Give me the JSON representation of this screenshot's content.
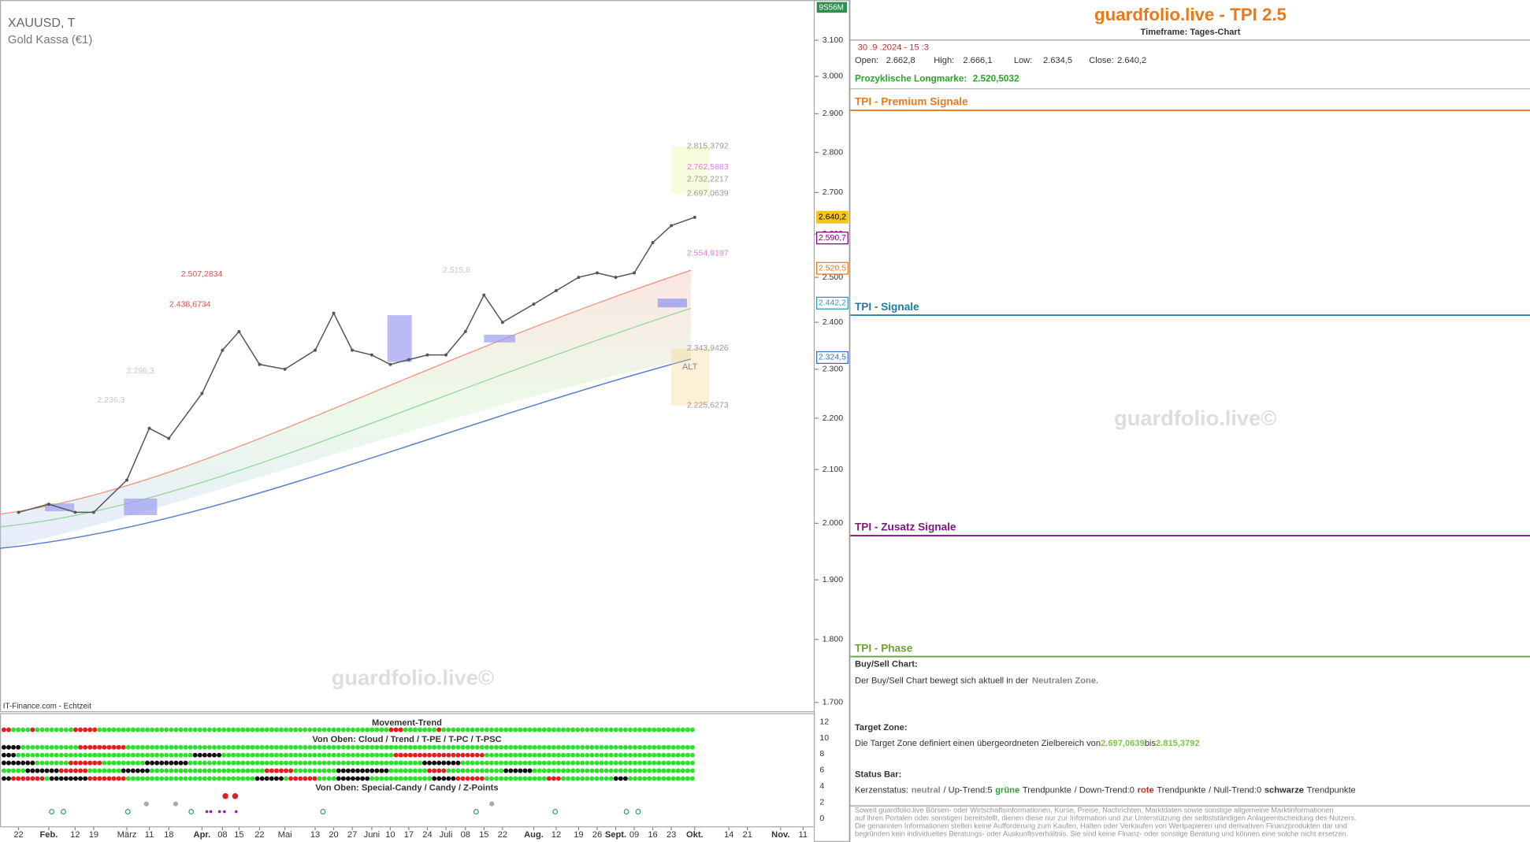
{
  "chart_data": {
    "type": "line",
    "title": "XAUUSD, T",
    "subtitle": "Gold Kassa (€1)",
    "source": "IT-Finance.com - Echtzeit",
    "watermark": "guardfolio.live©",
    "axis_badge": "9S56M",
    "log_scale": true,
    "grid": false,
    "color": "#555555",
    "categories": [
      "22",
      "Feb.",
      "12",
      "19",
      "März",
      "11",
      "18",
      "Apr.",
      "08",
      "15",
      "22",
      "Mai",
      "13",
      "20",
      "27",
      "Juni",
      "10",
      "17",
      "24",
      "Juli",
      "08",
      "15",
      "22",
      "Aug.",
      "12",
      "19",
      "26",
      "Sept.",
      "09",
      "16",
      "23",
      "Okt.",
      "14",
      "21",
      "Nov.",
      "11"
    ],
    "values": [
      2020,
      2035,
      2020,
      2020,
      2080,
      2180,
      2160,
      2250,
      2340,
      2380,
      2310,
      2300,
      2340,
      2420,
      2340,
      2330,
      2310,
      2320,
      2330,
      2330,
      2380,
      2460,
      2400,
      2440,
      2470,
      2500,
      2510,
      2500,
      2510,
      2580,
      2620,
      2640,
      null,
      null,
      null,
      null
    ],
    "ylim": [
      1685,
      3215
    ],
    "yticks": [
      {
        "value": 1700,
        "label": "1.700"
      },
      {
        "value": 1800,
        "label": "1.800"
      },
      {
        "value": 1900,
        "label": "1.900"
      },
      {
        "value": 2000,
        "label": "2.000"
      },
      {
        "value": 2100,
        "label": "2.100"
      },
      {
        "value": 2200,
        "label": "2.200"
      },
      {
        "value": 2300,
        "label": "2.300"
      },
      {
        "value": 2400,
        "label": "2.400"
      },
      {
        "value": 2500,
        "label": "2.500"
      },
      {
        "value": 2600,
        "label": "2.600"
      },
      {
        "value": 2700,
        "label": "2.700"
      },
      {
        "value": 2800,
        "label": "2.800"
      },
      {
        "value": 2900,
        "label": "2.900"
      },
      {
        "value": 3000,
        "label": "3.000"
      },
      {
        "value": 3100,
        "label": "3.100"
      }
    ],
    "annotations": [
      {
        "value": 2815.3792,
        "label": "2.815,3792",
        "color": "#999999"
      },
      {
        "value": 2762.5883,
        "label": "2.762,5883",
        "color": "#e879e8"
      },
      {
        "value": 2732.2217,
        "label": "2.732,2217",
        "color": "#999999"
      },
      {
        "value": 2697.0639,
        "label": "2.697,0639",
        "color": "#999999"
      },
      {
        "value": 2554.9197,
        "label": "2.554,9197",
        "color": "#e879e8"
      },
      {
        "value": 2507.2834,
        "label": "2.507,2834",
        "color": "#e05050"
      },
      {
        "value": 2438.6734,
        "label": "2.438,6734",
        "color": "#e05050"
      },
      {
        "value": 2515.8,
        "label": "2.515,8",
        "color": "#c8c8c8"
      },
      {
        "value": 2296.3,
        "label": "2.296,3",
        "color": "#c8c8c8"
      },
      {
        "value": 2236.3,
        "label": "2.236,3",
        "color": "#c8c8c8"
      },
      {
        "value": 2343.9426,
        "label": "2.343,9426",
        "color": "#999999"
      },
      {
        "value": 2225.6273,
        "label": "2.225,6273",
        "color": "#999999"
      }
    ],
    "zone_label": "ALT",
    "price_tags": [
      {
        "value": 2640.2,
        "label": "2.640,2",
        "color": "#f5c518"
      },
      {
        "value": 2590.7,
        "label": "2.590,7",
        "color": "#800080"
      },
      {
        "value": 2520.5,
        "label": "2.520,5",
        "color": "#e87a1e"
      },
      {
        "value": 2442.2,
        "label": "2.442,2",
        "color": "#2a9aa8"
      },
      {
        "value": 2324.5,
        "label": "2.324,5",
        "color": "#3a6fc4"
      }
    ]
  },
  "indicator_panel": {
    "title": "Movement-Trend",
    "subtitle1": "Von Oben: Cloud / Trend / T-PE / T-PC / T-PSC",
    "subtitle2": "Von Oben: Special-Candy / Candy / Z-Points",
    "ylim": [
      0,
      12
    ],
    "yticks": [
      0,
      2,
      4,
      6,
      8,
      10,
      12
    ]
  },
  "tpi": {
    "title": "guardfolio.live - TPI 2.5",
    "timeframe": "Timeframe: Tages-Chart",
    "date": "30 .9 .2024 - 15 :3",
    "ohlc": [
      [
        "Open:",
        "2.662,8"
      ],
      [
        "High:",
        "2.666,1"
      ],
      [
        "Low:",
        "2.634,5"
      ],
      [
        "Close:",
        "2.640,2"
      ]
    ],
    "longmarke_label": "Prozyklische Longmarke:",
    "longmarke_value": "2.520,5032",
    "sections": [
      "TPI - Premium Signale",
      "TPI - Signale",
      "TPI - Zusatz Signale",
      "TPI - Phase"
    ],
    "watermark": "guardfolio.live©",
    "buysell_title": "Buy/Sell Chart:",
    "buysell_text": "Der Buy/Sell Chart bewegt sich aktuell in der",
    "buysell_zone": "Neutralen Zone.",
    "target_title": "Target Zone:",
    "target_text": "Die Target Zone definiert einen übergeordneten Zielbereich von",
    "target_from": "2.697,0639",
    "target_bis": "bis",
    "target_to": "2.815,3792",
    "status_title": "Status Bar:",
    "status": [
      "Kerzenstatus:",
      "neutral",
      "/ Up-Trend:5",
      "grüne",
      "Trendpunkte",
      "/ Down-Trend:0",
      "rote",
      "Trendpunkte",
      "/ Null-Trend:0",
      "schwarze",
      "Trendpunkte"
    ],
    "disclaimer": [
      "Soweit guardfolio.live Börsen- oder Wirtschaftsinformationen, Kurse, Preise, Nachrichten, Marktdaten sowie sonstige allgemeine Marktinformationen",
      "auf ihren Portalen oder sonstigen bereitstellt, dienen diese nur zur Information und zur Unterstützung der selbstständigen Anlageentscheidung des Nutzers.",
      "Die genannten Informationen stellen keine Aufforderung zum Kaufen, Halten oder Verkaufen von Wertpapieren und derivativen Finanzprodukten dar und",
      "begründen kein individuelles Beratungs- oder Auskunftsverhältnis. Sie sind keine Finanz- oder sonstige Beratung und können eine solche nicht ersetzen."
    ]
  }
}
